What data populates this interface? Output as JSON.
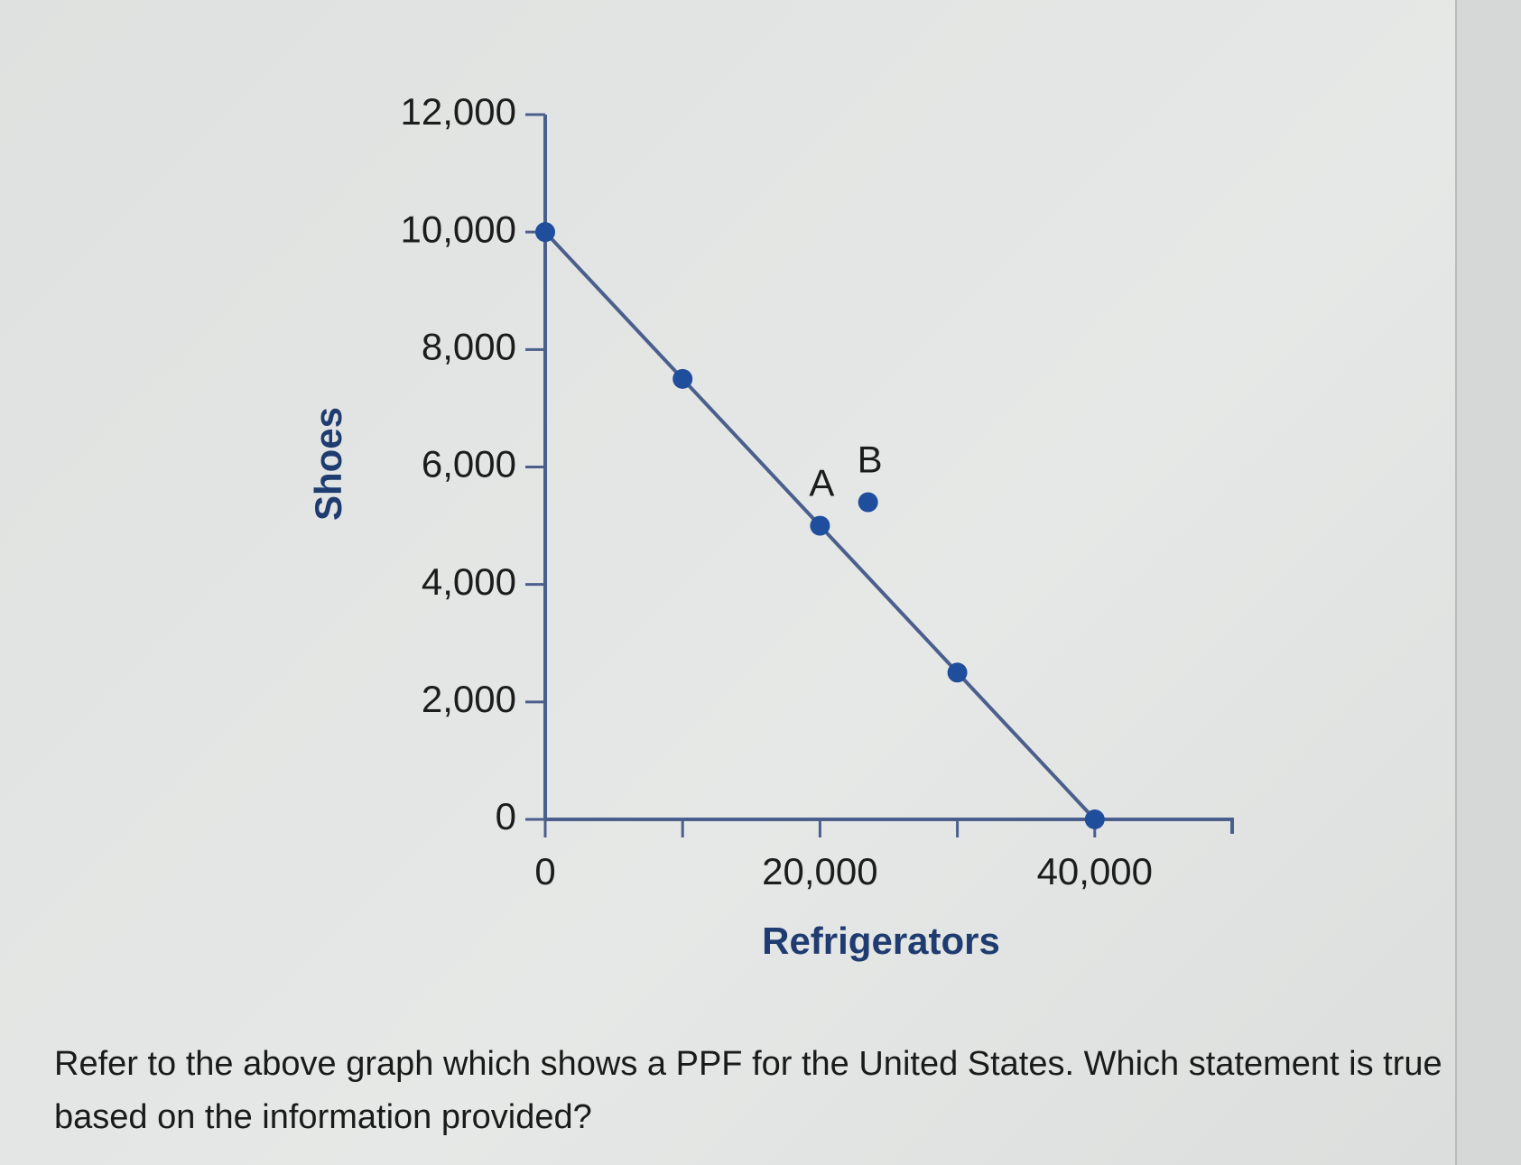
{
  "chart_data": {
    "type": "line",
    "x_label": "Refrigerators",
    "y_label": "Shoes",
    "x": [
      0,
      10000,
      20000,
      30000,
      40000
    ],
    "series": [
      {
        "color": "#1f4e9c",
        "values": [
          10000,
          7500,
          5000,
          2500,
          0
        ]
      }
    ],
    "annotations": [
      {
        "text": "A",
        "x": 20000,
        "y": 5000
      },
      {
        "text": "B",
        "x": 23500,
        "y": 5400
      }
    ],
    "xlim": [
      0,
      50000
    ],
    "xticks": [
      0,
      {
        "value": 20000,
        "label": "20,000"
      },
      {
        "value": 40000,
        "label": "40,000"
      }
    ],
    "xminorticks": [
      10000,
      30000
    ],
    "ylim": [
      0,
      12000
    ],
    "yticks": [
      0,
      {
        "value": 2000,
        "label": "2,000"
      },
      {
        "value": 4000,
        "label": "4,000"
      },
      {
        "value": 6000,
        "label": "6,000"
      },
      {
        "value": 8000,
        "label": "8,000"
      },
      {
        "value": 10000,
        "label": "10,000"
      },
      {
        "value": 12000,
        "label": "12,000"
      }
    ],
    "axis_color": "#4b5f8c"
  },
  "question": "Refer to the above graph which shows a PPF for the United States.  Which statement is true based on the information provided?"
}
